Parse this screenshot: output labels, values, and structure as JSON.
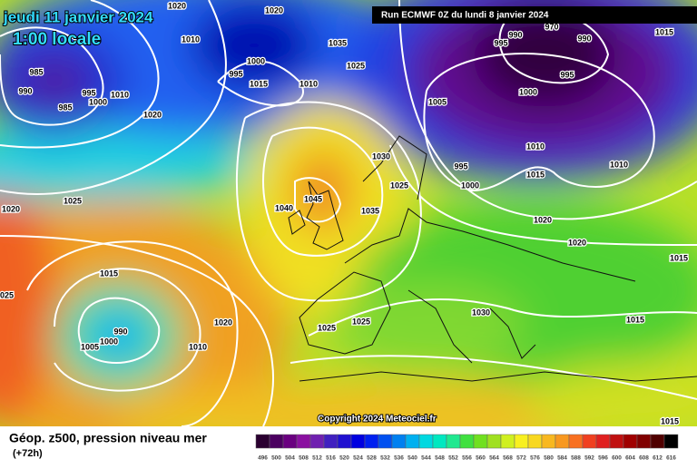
{
  "header": {
    "date": "jeudi 11 janvier 2024",
    "time": "1:00 locale",
    "run": "Run ECMWF 0Z du lundi 8 janvier 2024"
  },
  "copyright": "Copyright 2024 Meteociel.fr",
  "footer": {
    "title": "Géop. z500, pression niveau mer",
    "range": "(+72h)"
  },
  "isobar_labels": [
    1020,
    1010,
    1020,
    1035,
    1025,
    1000,
    995,
    1015,
    1010,
    985,
    990,
    985,
    995,
    1000,
    1010,
    1020,
    1005,
    970,
    995,
    990,
    990,
    1015,
    1000,
    995,
    1010,
    995,
    1015,
    1000,
    1010,
    1030,
    1025,
    1045,
    1040,
    1035,
    1025,
    1020,
    1020,
    1020,
    1015,
    1015,
    1025,
    1030,
    1025,
    1025,
    1015,
    1020,
    990,
    1000,
    1005,
    1010,
    1015
  ],
  "legend": {
    "labels": [
      496,
      500,
      504,
      508,
      512,
      516,
      520,
      524,
      528,
      532,
      536,
      540,
      544,
      548,
      552,
      556,
      560,
      564,
      568,
      572,
      576,
      580,
      584,
      588,
      592,
      596,
      600,
      604,
      608,
      612,
      616
    ],
    "colors": [
      "#2a0030",
      "#4b0060",
      "#6a0080",
      "#8a10a0",
      "#7020b0",
      "#4020c0",
      "#2010d0",
      "#0000e0",
      "#0020f0",
      "#0050f0",
      "#0080f0",
      "#00b0f0",
      "#00d8e0",
      "#00e8c0",
      "#20e890",
      "#40e040",
      "#70e020",
      "#a0e020",
      "#d0f020",
      "#f8f020",
      "#f8d820",
      "#f8b820",
      "#f89820",
      "#f87020",
      "#f04020",
      "#e02020",
      "#c01010",
      "#a00000",
      "#800000",
      "#500000",
      "#000000"
    ]
  }
}
